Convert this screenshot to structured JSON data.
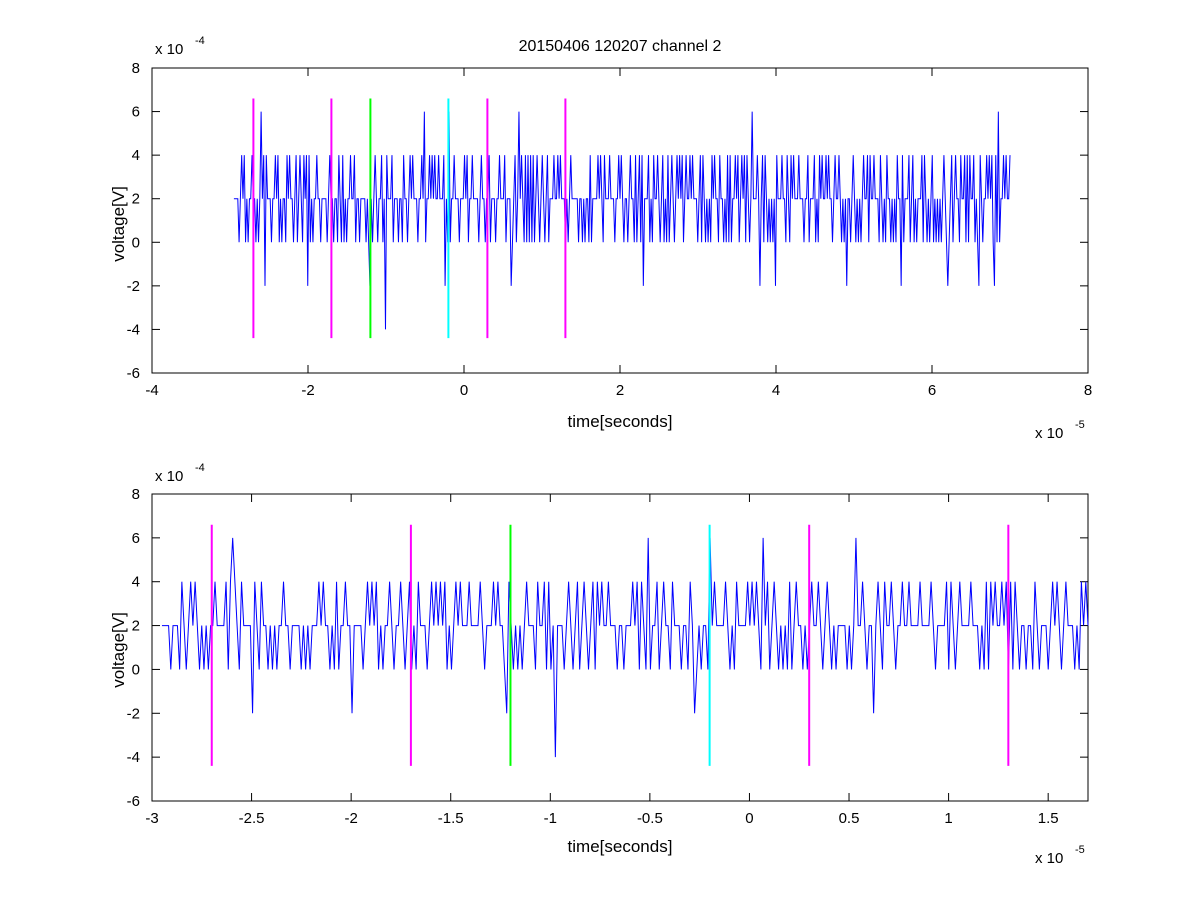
{
  "chart_data": [
    {
      "type": "line",
      "title": "20150406 120207 channel 2",
      "xlabel": "time[seconds]",
      "ylabel": "voltage[V]",
      "x_exponent_label": "x 10",
      "x_exponent": "-5",
      "y_exponent_label": "x 10",
      "y_exponent": "-4",
      "xlim": [
        -4,
        8
      ],
      "ylim": [
        -6,
        8
      ],
      "xticks": [
        "-4",
        "-2",
        "0",
        "2",
        "4",
        "6",
        "8"
      ],
      "yticks": [
        "-6",
        "-4",
        "-2",
        "0",
        "2",
        "4",
        "6",
        "8"
      ],
      "grid": false,
      "signal": {
        "color": "#0000ff",
        "x_start": -2.95,
        "x_end": 7.0,
        "samples": 600,
        "baseline": 2,
        "levels": [
          0,
          2,
          4
        ],
        "spikes_down": [
          {
            "x": -2.55,
            "y": -2
          },
          {
            "x": -2.0,
            "y": -2
          },
          {
            "x": -1.2,
            "y": -2
          },
          {
            "x": -1.0,
            "y": -4
          },
          {
            "x": -0.25,
            "y": -2
          },
          {
            "x": 0.6,
            "y": -2
          },
          {
            "x": 2.3,
            "y": -2
          },
          {
            "x": 3.8,
            "y": -2
          },
          {
            "x": 4.0,
            "y": -2
          },
          {
            "x": 4.9,
            "y": -2
          },
          {
            "x": 5.6,
            "y": -2
          },
          {
            "x": 6.2,
            "y": -2
          },
          {
            "x": 6.6,
            "y": -2
          },
          {
            "x": 6.8,
            "y": -2
          }
        ],
        "spikes_up": [
          {
            "x": -2.6,
            "y": 6
          },
          {
            "x": -0.5,
            "y": 6
          },
          {
            "x": -0.2,
            "y": 6
          },
          {
            "x": 0.7,
            "y": 6
          },
          {
            "x": 3.7,
            "y": 6
          },
          {
            "x": 6.85,
            "y": 6
          }
        ]
      },
      "markers": [
        {
          "x": -2.7,
          "color": "#ff00ff"
        },
        {
          "x": -1.7,
          "color": "#ff00ff"
        },
        {
          "x": -1.2,
          "color": "#00ff00"
        },
        {
          "x": -0.2,
          "color": "#00ffff"
        },
        {
          "x": 0.3,
          "color": "#ff00ff"
        },
        {
          "x": 1.3,
          "color": "#ff00ff"
        }
      ],
      "marker_range": [
        -4.4,
        6.6
      ]
    },
    {
      "type": "line",
      "title": "",
      "xlabel": "time[seconds]",
      "ylabel": "voltage[V]",
      "x_exponent_label": "x 10",
      "x_exponent": "-5",
      "y_exponent_label": "x 10",
      "y_exponent": "-4",
      "xlim": [
        -3.0,
        1.7
      ],
      "ylim": [
        -6,
        8
      ],
      "xticks": [
        "-3",
        "-2.5",
        "-2",
        "-1.5",
        "-1",
        "-0.5",
        "0",
        "0.5",
        "1",
        "1.5"
      ],
      "yticks": [
        "-6",
        "-4",
        "-2",
        "0",
        "2",
        "4",
        "6",
        "8"
      ],
      "grid": false,
      "signal": {
        "color": "#0000ff",
        "x_start": -2.95,
        "x_end": 1.7,
        "samples": 420,
        "baseline": 2,
        "levels": [
          0,
          2,
          4
        ],
        "spikes_down": [
          {
            "x": -2.5,
            "y": -2
          },
          {
            "x": -2.0,
            "y": -2
          },
          {
            "x": -1.22,
            "y": -2
          },
          {
            "x": -0.97,
            "y": -4
          },
          {
            "x": -0.28,
            "y": -2
          },
          {
            "x": 0.62,
            "y": -2
          }
        ],
        "spikes_up": [
          {
            "x": -2.6,
            "y": 6
          },
          {
            "x": -0.51,
            "y": 6
          },
          {
            "x": -0.2,
            "y": 6
          },
          {
            "x": 0.07,
            "y": 6
          },
          {
            "x": 0.53,
            "y": 6
          }
        ]
      },
      "markers": [
        {
          "x": -2.7,
          "color": "#ff00ff"
        },
        {
          "x": -1.7,
          "color": "#ff00ff"
        },
        {
          "x": -1.2,
          "color": "#00ff00"
        },
        {
          "x": -0.2,
          "color": "#00ffff"
        },
        {
          "x": 0.3,
          "color": "#ff00ff"
        },
        {
          "x": 1.3,
          "color": "#ff00ff"
        }
      ],
      "marker_range": [
        -4.4,
        6.6
      ]
    }
  ]
}
